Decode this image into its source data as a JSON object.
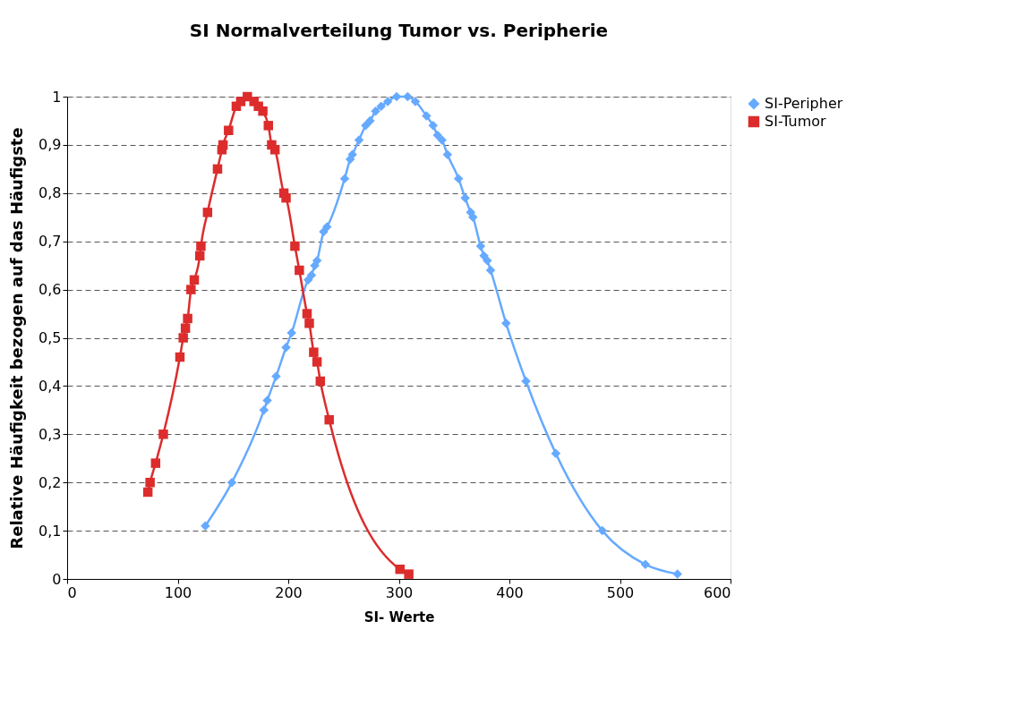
{
  "chart_data": {
    "type": "line",
    "title": "SI Normalverteilung Tumor vs. Peripherie",
    "xlabel": "SI- Werte",
    "ylabel": "Relative Häufigkeit bezogen auf das Häufigste",
    "xlim": [
      0,
      600
    ],
    "xticks": [
      0,
      100,
      200,
      300,
      400,
      500,
      600
    ],
    "ylim": [
      0,
      1
    ],
    "yticks": [
      0,
      {
        "value": 0.1,
        "label": "0,1"
      },
      {
        "value": 0.2,
        "label": "0,2"
      },
      {
        "value": 0.3,
        "label": "0,3"
      },
      {
        "value": 0.4,
        "label": "0,4"
      },
      {
        "value": 0.5,
        "label": "0,5"
      },
      {
        "value": 0.6,
        "label": "0,6"
      },
      {
        "value": 0.7,
        "label": "0,7"
      },
      {
        "value": 0.8,
        "label": "0,8"
      },
      {
        "value": 0.9,
        "label": "0,9"
      },
      1
    ],
    "grid": "y",
    "legend": "right",
    "line_style": "solid",
    "series": [
      {
        "name": "SI-Peripher",
        "color": "#66aaff",
        "marker": "diamond",
        "x": [
          125,
          149,
          178,
          181,
          189,
          198,
          203,
          218,
          221,
          224,
          226,
          232,
          235,
          251,
          256,
          258,
          264,
          270,
          274,
          279,
          284,
          290,
          298,
          308,
          315,
          325,
          331,
          335,
          339,
          344,
          354,
          360,
          365,
          367,
          374,
          377,
          380,
          383,
          397,
          415,
          442,
          484,
          523,
          552
        ],
        "values": [
          0.11,
          0.2,
          0.35,
          0.37,
          0.42,
          0.48,
          0.51,
          0.62,
          0.63,
          0.65,
          0.66,
          0.72,
          0.73,
          0.83,
          0.87,
          0.88,
          0.91,
          0.94,
          0.95,
          0.97,
          0.98,
          0.99,
          1.0,
          1.0,
          0.99,
          0.96,
          0.94,
          0.92,
          0.91,
          0.88,
          0.83,
          0.79,
          0.76,
          0.75,
          0.69,
          0.67,
          0.66,
          0.64,
          0.53,
          0.41,
          0.26,
          0.1,
          0.03,
          0.01
        ]
      },
      {
        "name": "SI-Tumor",
        "color": "#dc2c2c",
        "marker": "square",
        "x": [
          73,
          75,
          80,
          87,
          102,
          105,
          107,
          109,
          112,
          115,
          120,
          121,
          127,
          136,
          140,
          141,
          146,
          153,
          157,
          163,
          169,
          173,
          177,
          182,
          185,
          188,
          196,
          198,
          206,
          210,
          217,
          219,
          223,
          226,
          229,
          237,
          301,
          309
        ],
        "values": [
          0.18,
          0.2,
          0.24,
          0.3,
          0.46,
          0.5,
          0.52,
          0.54,
          0.6,
          0.62,
          0.67,
          0.69,
          0.76,
          0.85,
          0.89,
          0.9,
          0.93,
          0.98,
          0.99,
          1.0,
          0.99,
          0.98,
          0.97,
          0.94,
          0.9,
          0.89,
          0.8,
          0.79,
          0.69,
          0.64,
          0.55,
          0.53,
          0.47,
          0.45,
          0.41,
          0.33,
          0.02,
          0.01
        ]
      }
    ]
  }
}
